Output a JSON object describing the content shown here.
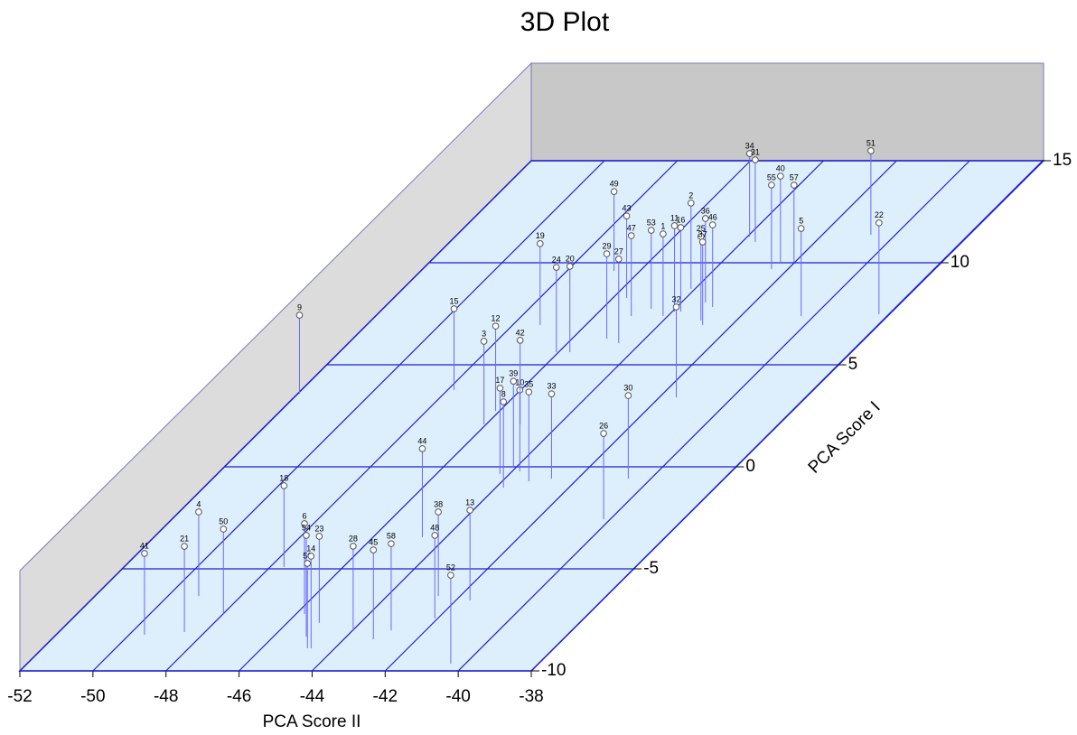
{
  "chart_data": {
    "type": "scatter3d",
    "title": "3D  Plot",
    "xlabel": "PCA Score II",
    "ylabel": "PCA Score I",
    "xlim": [
      -52,
      -38
    ],
    "ylim": [
      -10,
      15
    ],
    "zlim": [
      0,
      50
    ],
    "xticks": [
      -52,
      -50,
      -48,
      -46,
      -44,
      -42,
      -40,
      -38
    ],
    "yticks": [
      -10,
      -5,
      0,
      5,
      10,
      15
    ],
    "grid": true,
    "color": "#6a6aff",
    "labels": [
      "41",
      "21",
      "4",
      "50",
      "18",
      "6",
      "54",
      "56",
      "14",
      "23",
      "28",
      "45",
      "58",
      "38",
      "48",
      "13",
      "52",
      "44",
      "26",
      "30",
      "33",
      "35",
      "10",
      "39",
      "17",
      "8",
      "3",
      "12",
      "42",
      "15",
      "9",
      "19",
      "24",
      "20",
      "29",
      "27",
      "49",
      "43",
      "47",
      "53",
      "1",
      "2",
      "11",
      "16",
      "32",
      "36",
      "46",
      "25",
      "37",
      "34",
      "31",
      "55",
      "40",
      "57",
      "5",
      "51",
      "22"
    ],
    "x": [
      -49.58,
      -48.56,
      -49.16,
      -47.99,
      -47.62,
      -45.77,
      -45.1,
      -44.75,
      -44.65,
      -45.12,
      -43.99,
      -43.19,
      -42.95,
      -42.6,
      -42.08,
      -41.61,
      -40.4,
      -44.65,
      -40.18,
      -40.62,
      -42.72,
      -43.27,
      -43.79,
      -44.11,
      -44.26,
      -43.79,
      -46.06,
      -46.11,
      -45.07,
      -47.82,
      -51.95,
      -47.25,
      -46.06,
      -45.69,
      -45.05,
      -44.6,
      -46.71,
      -45.62,
      -45.0,
      -44.65,
      -44.13,
      -44.11,
      -43.94,
      -43.77,
      -41.54,
      -43.34,
      -43.02,
      -42.97,
      -42.8,
      -43.94,
      -43.64,
      -42.45,
      -42.4,
      -42.03,
      -40.35,
      -40.67,
      -38.27
    ],
    "y": [
      -8.23,
      -8.1,
      -6.33,
      -7.21,
      -4.91,
      -7.21,
      -8.32,
      -8.89,
      -8.89,
      -7.65,
      -8.01,
      -8.45,
      -8.01,
      -6.33,
      -7.43,
      -6.55,
      -9.65,
      -3.45,
      -2.57,
      -0.58,
      -0.58,
      -0.71,
      -0.22,
      0.04,
      -0.35,
      -1.02,
      2.08,
      2.74,
      2.08,
      3.76,
      3.58,
      6.95,
      5.62,
      5.62,
      6.28,
      6.06,
      9.6,
      8.27,
      7.39,
      7.74,
      7.39,
      8.72,
      7.61,
      7.61,
      3.41,
      8.05,
      7.83,
      7.17,
      6.95,
      11.28,
      11.02,
      9.69,
      10.04,
      10.04,
      7.39,
      11.37,
      7.48
    ],
    "z": [
      41.7,
      44.0,
      43.1,
      43.5,
      41.7,
      46.3,
      51.9,
      43.5,
      47.2,
      44.4,
      43.1,
      45.8,
      44.4,
      43.1,
      42.6,
      46.3,
      45.4,
      45.4,
      44.0,
      42.6,
      43.5,
      45.8,
      41.7,
      43.5,
      44.0,
      44.0,
      42.6,
      43.5,
      43.1,
      41.7,
      40.3,
      41.7,
      43.5,
      44.0,
      43.5,
      43.1,
      40.7,
      42.1,
      41.2,
      40.3,
      42.1,
      44.0,
      44.0,
      43.1,
      46.3,
      43.1,
      42.1,
      43.1,
      42.6,
      42.6,
      42.1,
      43.1,
      44.0,
      39.4,
      44.9,
      43.1,
      46.8
    ]
  }
}
